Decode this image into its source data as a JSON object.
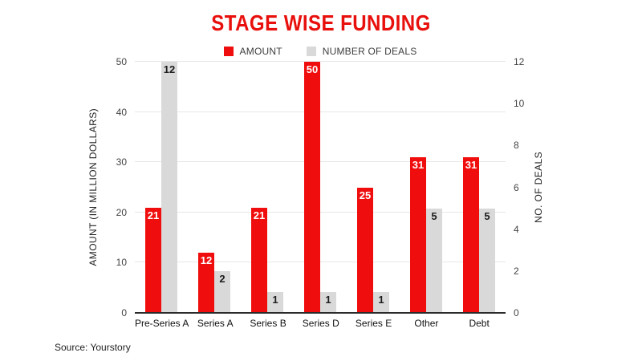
{
  "title": "STAGE WISE FUNDING",
  "title_color": "#e8100c",
  "source": "Source: Yourstory",
  "legend": {
    "items": [
      {
        "label": "AMOUNT",
        "color": "#f00d0d"
      },
      {
        "label": "NUMBER OF DEALS",
        "color": "#d9d9d9"
      }
    ]
  },
  "chart_data": {
    "type": "bar",
    "title": "STAGE WISE FUNDING",
    "categories": [
      "Pre-Series A",
      "Series A",
      "Series B",
      "Series D",
      "Series E",
      "Other",
      "Debt"
    ],
    "series": [
      {
        "name": "AMOUNT",
        "axis": "left",
        "color": "#f00d0d",
        "label_color": "#ffffff",
        "values": [
          21,
          12,
          21,
          50,
          25,
          31,
          31
        ]
      },
      {
        "name": "NUMBER OF DEALS",
        "axis": "right",
        "color": "#d9d9d9",
        "label_color": "#1c1c1c",
        "values": [
          12,
          2,
          1,
          1,
          1,
          5,
          5
        ]
      }
    ],
    "left_axis": {
      "title": "AMOUNT (IN MILLION DOLLARS)",
      "ticks": [
        0,
        10,
        20,
        30,
        40,
        50
      ],
      "min": 0,
      "max": 50
    },
    "right_axis": {
      "title": "NO. OF DEALS",
      "ticks": [
        0,
        2,
        4,
        6,
        8,
        10,
        12
      ],
      "min": 0,
      "max": 12
    },
    "grid": true,
    "legend_position": "top",
    "bar_labels": true
  }
}
